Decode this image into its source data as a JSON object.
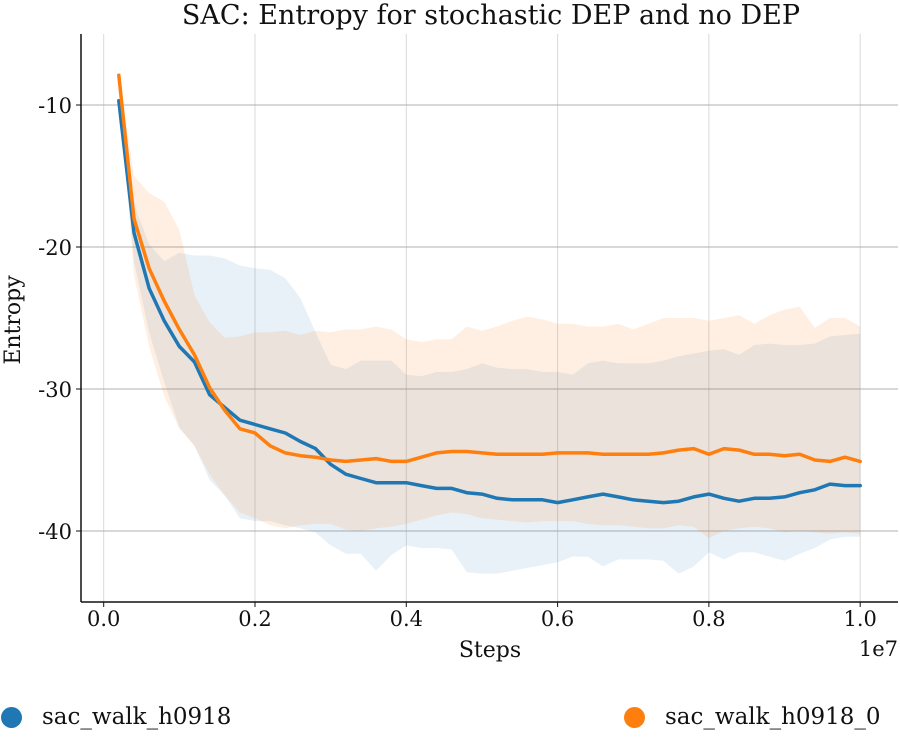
{
  "chart_data": {
    "type": "line",
    "title": "SAC: Entropy for stochastic DEP and no DEP",
    "xlabel": "Steps",
    "ylabel": "Entropy",
    "x_offset_label": "1e7",
    "xlim": [
      -0.03,
      1.05
    ],
    "ylim": [
      -45,
      -5
    ],
    "x_ticks": [
      0.0,
      0.2,
      0.4,
      0.6,
      0.8,
      1.0
    ],
    "x_tick_labels": [
      "0.0",
      "0.2",
      "0.4",
      "0.6",
      "0.8",
      "1.0"
    ],
    "y_ticks": [
      -10,
      -20,
      -30,
      -40
    ],
    "y_tick_labels": [
      "-10",
      "-20",
      "-30",
      "-40"
    ],
    "grid": true,
    "legend_position": "bottom",
    "series": [
      {
        "name": "sac_walk_h0918",
        "color": "#1f77b4",
        "x": [
          0.02,
          0.04,
          0.06,
          0.08,
          0.1,
          0.12,
          0.14,
          0.16,
          0.18,
          0.2,
          0.22,
          0.24,
          0.26,
          0.28,
          0.3,
          0.32,
          0.34,
          0.36,
          0.38,
          0.4,
          0.42,
          0.44,
          0.46,
          0.48,
          0.5,
          0.52,
          0.54,
          0.56,
          0.58,
          0.6,
          0.62,
          0.64,
          0.66,
          0.68,
          0.7,
          0.72,
          0.74,
          0.76,
          0.78,
          0.8,
          0.82,
          0.84,
          0.86,
          0.88,
          0.9,
          0.92,
          0.94,
          0.96,
          0.98,
          1.0
        ],
        "y": [
          -9.7,
          -19.0,
          -22.9,
          -25.2,
          -27.0,
          -28.1,
          -30.4,
          -31.3,
          -32.2,
          -32.5,
          -32.8,
          -33.1,
          -33.7,
          -34.2,
          -35.3,
          -36.0,
          -36.3,
          -36.6,
          -36.6,
          -36.6,
          -36.8,
          -37.0,
          -37.0,
          -37.3,
          -37.4,
          -37.7,
          -37.8,
          -37.8,
          -37.8,
          -38.0,
          -37.8,
          -37.6,
          -37.4,
          -37.6,
          -37.8,
          -37.9,
          -38.0,
          -37.9,
          -37.6,
          -37.4,
          -37.7,
          -37.9,
          -37.7,
          -37.7,
          -37.6,
          -37.3,
          -37.1,
          -36.7,
          -36.8,
          -36.8
        ],
        "upper": [
          -9.7,
          -17.0,
          -19.8,
          -21.0,
          -20.4,
          -20.6,
          -20.6,
          -20.8,
          -21.3,
          -21.5,
          -21.6,
          -22.2,
          -23.6,
          -26.0,
          -28.3,
          -28.6,
          -28.0,
          -28.0,
          -28.0,
          -29.0,
          -29.1,
          -28.8,
          -28.8,
          -28.6,
          -28.2,
          -28.5,
          -28.6,
          -28.6,
          -28.8,
          -28.8,
          -29.0,
          -28.2,
          -28.0,
          -28.2,
          -28.2,
          -28.2,
          -28.0,
          -27.7,
          -27.5,
          -27.3,
          -27.2,
          -27.6,
          -26.9,
          -26.8,
          -26.9,
          -26.9,
          -26.8,
          -26.3,
          -26.2,
          -26.1
        ],
        "lower": [
          -9.7,
          -21.0,
          -26.0,
          -29.5,
          -32.7,
          -34.0,
          -36.4,
          -37.5,
          -39.1,
          -39.3,
          -39.3,
          -39.6,
          -39.8,
          -40.1,
          -41.0,
          -41.6,
          -41.6,
          -42.8,
          -41.7,
          -41.0,
          -41.2,
          -41.2,
          -41.3,
          -42.9,
          -43.0,
          -43.0,
          -42.8,
          -42.6,
          -42.4,
          -42.2,
          -41.8,
          -41.8,
          -42.5,
          -42.0,
          -42.0,
          -42.0,
          -42.1,
          -43.0,
          -42.5,
          -41.5,
          -42.0,
          -41.5,
          -41.5,
          -41.8,
          -42.1,
          -41.6,
          -41.2,
          -40.6,
          -40.4,
          -40.4
        ]
      },
      {
        "name": "sac_walk_h0918_0",
        "color": "#ff7f0e",
        "x": [
          0.02,
          0.04,
          0.06,
          0.08,
          0.1,
          0.12,
          0.14,
          0.16,
          0.18,
          0.2,
          0.22,
          0.24,
          0.26,
          0.28,
          0.3,
          0.32,
          0.34,
          0.36,
          0.38,
          0.4,
          0.42,
          0.44,
          0.46,
          0.48,
          0.5,
          0.52,
          0.54,
          0.56,
          0.58,
          0.6,
          0.62,
          0.64,
          0.66,
          0.68,
          0.7,
          0.72,
          0.74,
          0.76,
          0.78,
          0.8,
          0.82,
          0.84,
          0.86,
          0.88,
          0.9,
          0.92,
          0.94,
          0.96,
          0.98,
          1.0
        ],
        "y": [
          -7.9,
          -18.0,
          -21.5,
          -23.8,
          -25.8,
          -27.6,
          -29.9,
          -31.5,
          -32.8,
          -33.1,
          -34.0,
          -34.5,
          -34.7,
          -34.8,
          -35.0,
          -35.1,
          -35.0,
          -34.9,
          -35.1,
          -35.1,
          -34.8,
          -34.5,
          -34.4,
          -34.4,
          -34.5,
          -34.6,
          -34.6,
          -34.6,
          -34.6,
          -34.5,
          -34.5,
          -34.5,
          -34.6,
          -34.6,
          -34.6,
          -34.6,
          -34.5,
          -34.3,
          -34.2,
          -34.6,
          -34.2,
          -34.3,
          -34.6,
          -34.6,
          -34.7,
          -34.6,
          -35.0,
          -35.1,
          -34.8,
          -35.1
        ],
        "upper": [
          -7.9,
          -15.0,
          -16.2,
          -16.8,
          -18.8,
          -23.4,
          -25.3,
          -26.4,
          -26.3,
          -26.0,
          -26.0,
          -25.9,
          -26.2,
          -25.9,
          -26.0,
          -25.8,
          -25.8,
          -25.6,
          -25.8,
          -26.5,
          -26.7,
          -26.5,
          -26.5,
          -25.6,
          -25.9,
          -25.6,
          -25.2,
          -24.9,
          -25.1,
          -25.4,
          -25.4,
          -25.6,
          -25.6,
          -25.4,
          -25.8,
          -25.4,
          -25.0,
          -25.0,
          -25.0,
          -25.2,
          -25.0,
          -24.8,
          -25.4,
          -24.8,
          -24.4,
          -24.2,
          -25.7,
          -25.0,
          -25.0,
          -25.6
        ],
        "lower": [
          -7.9,
          -22.0,
          -27.0,
          -30.5,
          -32.8,
          -34.0,
          -36.0,
          -37.5,
          -38.7,
          -39.1,
          -39.6,
          -39.8,
          -39.6,
          -39.5,
          -39.5,
          -39.9,
          -40.0,
          -39.8,
          -39.7,
          -39.5,
          -39.2,
          -38.9,
          -38.7,
          -38.8,
          -39.1,
          -39.2,
          -39.3,
          -39.4,
          -39.3,
          -39.3,
          -39.3,
          -39.5,
          -39.6,
          -39.6,
          -39.7,
          -39.8,
          -39.8,
          -39.6,
          -39.7,
          -40.5,
          -40.0,
          -39.8,
          -39.7,
          -39.8,
          -40.1,
          -40.0,
          -40.1,
          -40.2,
          -40.1,
          -40.2
        ]
      }
    ]
  }
}
